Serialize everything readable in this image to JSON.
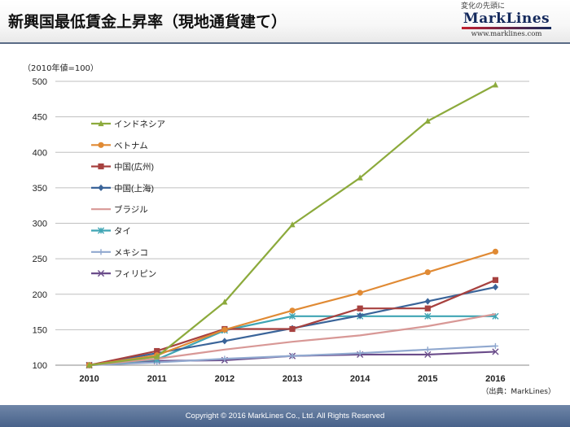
{
  "header": {
    "title": "新興国最低賃金上昇率（現地通貨建て）",
    "logo": {
      "tagline": "変化の先頭に",
      "name": "MarkLines",
      "url": "www.marklines.com"
    }
  },
  "unit_note": "（2010年値=100）",
  "source_note": "（出典：MarkLines）",
  "footer": {
    "copyright": "Copyright © 2016 MarkLines Co., Ltd. All Rights Reserved"
  },
  "chart_data": {
    "type": "line",
    "title": "",
    "xlabel": "",
    "ylabel": "",
    "x": [
      "2010",
      "2011",
      "2012",
      "2013",
      "2014",
      "2015",
      "2016"
    ],
    "ylim": [
      100,
      500
    ],
    "yticks": [
      100,
      150,
      200,
      250,
      300,
      350,
      400,
      450,
      500
    ],
    "grid": true,
    "legend_position": "top-left",
    "series": [
      {
        "name": "インドネシア",
        "color": "#8caa3c",
        "marker": "triangle",
        "values": [
          100,
          112,
          189,
          298,
          364,
          444,
          495
        ]
      },
      {
        "name": "ベトナム",
        "color": "#e08a34",
        "marker": "circle",
        "values": [
          100,
          114,
          150,
          177,
          202,
          231,
          260
        ]
      },
      {
        "name": "中国(広州)",
        "color": "#a7413f",
        "marker": "square",
        "values": [
          100,
          120,
          151,
          151,
          180,
          180,
          220
        ]
      },
      {
        "name": "中国(上海)",
        "color": "#3a6499",
        "marker": "diamond",
        "values": [
          100,
          117,
          134,
          152,
          170,
          190,
          210
        ]
      },
      {
        "name": "ブラジル",
        "color": "#d89896",
        "marker": "none",
        "values": [
          100,
          109,
          122,
          133,
          142,
          155,
          172
        ]
      },
      {
        "name": "タイ",
        "color": "#3fa5b4",
        "marker": "asterisk",
        "values": [
          100,
          108,
          149,
          169,
          169,
          169,
          169
        ]
      },
      {
        "name": "メキシコ",
        "color": "#90a8cf",
        "marker": "plus",
        "values": [
          100,
          104,
          109,
          113,
          117,
          122,
          127
        ]
      },
      {
        "name": "フィリピン",
        "color": "#6a4c8a",
        "marker": "cross",
        "values": [
          100,
          106,
          107,
          113,
          115,
          115,
          119
        ]
      }
    ]
  }
}
